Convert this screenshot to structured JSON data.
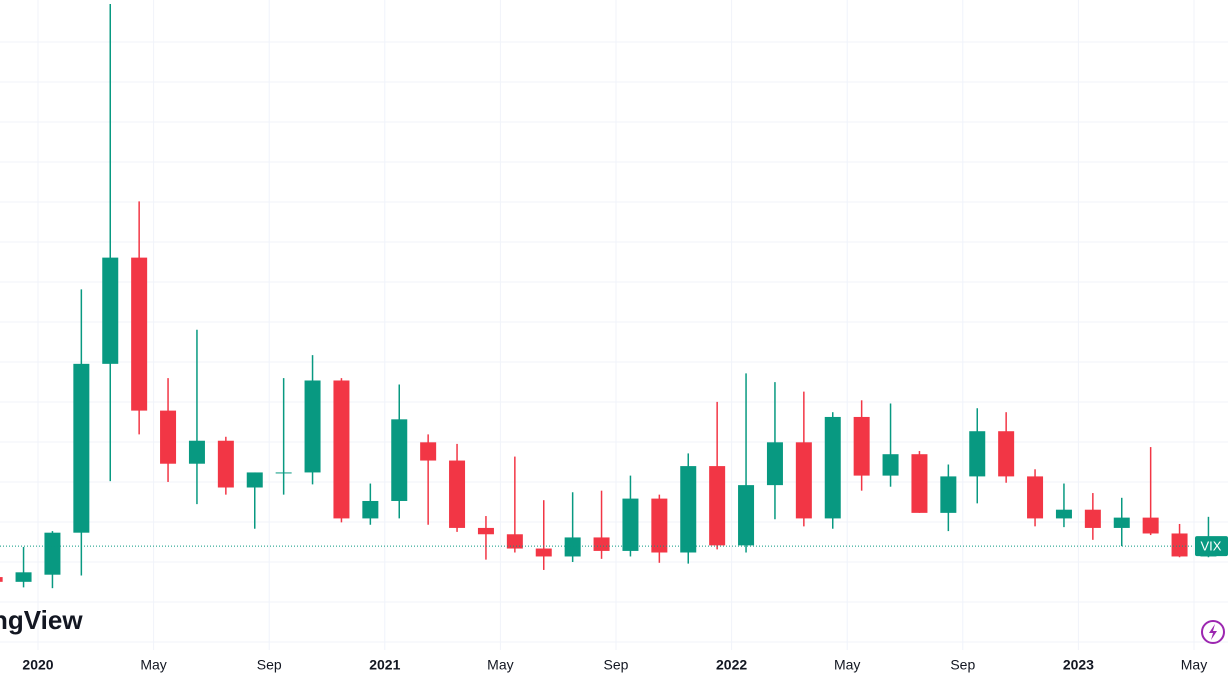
{
  "chart_data": {
    "type": "candlestick",
    "name": "VIX",
    "watermark": "ngView",
    "x": [
      "2019-11",
      "2019-12",
      "2020-01",
      "2020-02",
      "2020-03",
      "2020-04",
      "2020-05",
      "2020-06",
      "2020-07",
      "2020-08",
      "2020-09",
      "2020-10",
      "2020-11",
      "2020-12",
      "2021-01",
      "2021-02",
      "2021-03",
      "2021-04",
      "2021-05",
      "2021-06",
      "2021-07",
      "2021-08",
      "2021-09",
      "2021-10",
      "2021-11",
      "2021-12",
      "2022-01",
      "2022-02",
      "2022-03",
      "2022-04",
      "2022-05",
      "2022-06",
      "2022-07",
      "2022-08",
      "2022-09",
      "2022-10",
      "2022-11",
      "2022-12",
      "2023-01",
      "2023-02",
      "2023-03",
      "2023-04",
      "2023-05"
    ],
    "open": [
      13.2,
      12.6,
      13.5,
      18.8,
      40.1,
      53.5,
      34.2,
      27.5,
      30.4,
      24.5,
      26.4,
      26.4,
      38.0,
      20.6,
      22.8,
      30.2,
      27.9,
      19.4,
      18.6,
      16.8,
      15.8,
      18.2,
      16.5,
      23.1,
      16.3,
      27.2,
      17.2,
      24.8,
      30.2,
      20.6,
      33.4,
      26.0,
      28.7,
      21.3,
      25.9,
      31.6,
      25.9,
      20.6,
      21.7,
      19.4,
      20.7,
      18.7,
      15.8
    ],
    "high": [
      14.0,
      17.0,
      19.0,
      49.5,
      85.5,
      60.6,
      38.3,
      44.4,
      30.9,
      26.4,
      38.3,
      41.2,
      38.3,
      25.0,
      37.5,
      31.2,
      30.0,
      20.9,
      28.4,
      22.9,
      23.9,
      24.1,
      26.0,
      23.6,
      28.8,
      35.3,
      38.9,
      37.8,
      36.6,
      34.0,
      35.5,
      35.1,
      29.1,
      27.4,
      34.5,
      34.0,
      26.8,
      25.0,
      23.8,
      23.2,
      29.6,
      19.9,
      20.8
    ],
    "low": [
      11.7,
      11.9,
      11.8,
      13.4,
      25.3,
      31.2,
      25.2,
      22.4,
      23.6,
      19.3,
      23.6,
      24.9,
      20.1,
      19.8,
      20.6,
      19.8,
      18.9,
      15.4,
      16.3,
      14.1,
      15.1,
      15.5,
      15.8,
      15.0,
      14.9,
      16.7,
      16.3,
      20.5,
      19.6,
      19.3,
      24.1,
      24.6,
      21.3,
      19.0,
      22.5,
      25.1,
      19.6,
      19.5,
      17.9,
      17.1,
      18.5,
      15.7,
      15.7
    ],
    "close": [
      12.6,
      13.8,
      18.8,
      40.1,
      53.5,
      34.2,
      27.5,
      30.4,
      24.5,
      26.4,
      26.4,
      38.0,
      20.6,
      22.8,
      33.1,
      27.9,
      19.4,
      18.6,
      16.8,
      15.8,
      18.2,
      16.5,
      23.1,
      16.3,
      27.2,
      17.2,
      24.8,
      30.2,
      20.6,
      33.4,
      26.0,
      28.7,
      21.3,
      25.9,
      31.6,
      25.9,
      20.6,
      21.7,
      19.4,
      20.7,
      18.7,
      15.8,
      17.1
    ],
    "up_color": "#089981",
    "down_color": "#f23645",
    "ylim": [
      4,
      86
    ],
    "grid": true,
    "xticks": [
      {
        "value": "2020-01",
        "label": "2020"
      },
      {
        "value": "2020-05",
        "label": "May"
      },
      {
        "value": "2020-09",
        "label": "Sep"
      },
      {
        "value": "2021-01",
        "label": "2021"
      },
      {
        "value": "2021-05",
        "label": "May"
      },
      {
        "value": "2021-09",
        "label": "Sep"
      },
      {
        "value": "2022-01",
        "label": "2022"
      },
      {
        "value": "2022-05",
        "label": "May"
      },
      {
        "value": "2022-09",
        "label": "Sep"
      },
      {
        "value": "2023-01",
        "label": "2023"
      },
      {
        "value": "2023-05",
        "label": "May"
      }
    ]
  }
}
